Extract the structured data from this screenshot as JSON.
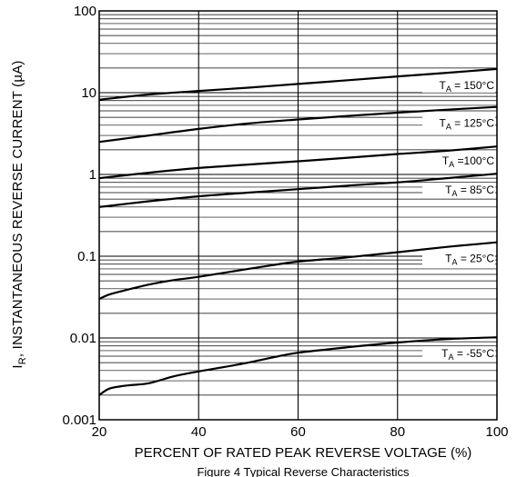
{
  "chart_data": {
    "type": "line",
    "title": "",
    "caption": "Figure 4 Typical Reverse Characteristics",
    "xlabel": "PERCENT OF RATED PEAK REVERSE VOLTAGE (%)",
    "ylabel": {
      "main": "I",
      "sub": "R",
      "rest": ", INSTANTANEOUS REVERSE CURRENT (µA)"
    },
    "xlim": [
      20,
      100
    ],
    "ylim": [
      0.001,
      100
    ],
    "yscale": "log",
    "grid": true,
    "x_ticks": [
      {
        "value": 20,
        "label": "20"
      },
      {
        "value": 40,
        "label": "40"
      },
      {
        "value": 60,
        "label": "60"
      },
      {
        "value": 80,
        "label": "80"
      },
      {
        "value": 100,
        "label": "100"
      }
    ],
    "y_ticks": [
      {
        "value": 100,
        "label": "100"
      },
      {
        "value": 10,
        "label": "10"
      },
      {
        "value": 1,
        "label": "1"
      },
      {
        "value": 0.1,
        "label": "0.1"
      },
      {
        "value": 0.01,
        "label": "0.01"
      },
      {
        "value": 0.001,
        "label": "0.001"
      }
    ],
    "series": [
      {
        "name": "150°C",
        "label_main": "T",
        "label_sub": "A",
        "label_rest": " = 150°C",
        "x": [
          20,
          30,
          40,
          50,
          60,
          70,
          80,
          90,
          100
        ],
        "y": [
          8.2,
          9.5,
          10.5,
          11.5,
          12.8,
          14.2,
          15.8,
          17.5,
          19.5
        ]
      },
      {
        "name": "125°C",
        "label_main": "T",
        "label_sub": "A",
        "label_rest": " = 125°C",
        "x": [
          20,
          30,
          40,
          50,
          60,
          70,
          80,
          90,
          100
        ],
        "y": [
          2.5,
          3.0,
          3.6,
          4.2,
          4.7,
          5.2,
          5.7,
          6.2,
          6.7
        ]
      },
      {
        "name": "100°C",
        "label_main": "T",
        "label_sub": "A",
        "label_rest": " =100°C",
        "x": [
          20,
          30,
          40,
          50,
          60,
          70,
          80,
          90,
          100
        ],
        "y": [
          0.9,
          1.05,
          1.2,
          1.32,
          1.45,
          1.6,
          1.78,
          1.95,
          2.2
        ]
      },
      {
        "name": "85°C",
        "label_main": "T",
        "label_sub": "A",
        "label_rest": " = 85°C",
        "x": [
          20,
          30,
          40,
          50,
          60,
          70,
          80,
          90,
          100
        ],
        "y": [
          0.4,
          0.47,
          0.54,
          0.6,
          0.66,
          0.73,
          0.8,
          0.9,
          1.02
        ]
      },
      {
        "name": "25°C",
        "label_main": "T",
        "label_sub": "A",
        "label_rest": " = 25°C",
        "x": [
          20,
          22,
          25,
          30,
          35,
          40,
          50,
          55,
          60,
          70,
          80,
          90,
          100
        ],
        "y": [
          0.03,
          0.034,
          0.038,
          0.045,
          0.051,
          0.056,
          0.07,
          0.078,
          0.086,
          0.097,
          0.112,
          0.13,
          0.148
        ]
      },
      {
        "name": "-55°C",
        "label_main": "T",
        "label_sub": "A",
        "label_rest": " = -55°C",
        "x": [
          20,
          22,
          25,
          30,
          35,
          40,
          45,
          50,
          55,
          60,
          70,
          80,
          90,
          100
        ],
        "y": [
          0.002,
          0.0024,
          0.0026,
          0.0028,
          0.0034,
          0.0039,
          0.0044,
          0.005,
          0.0058,
          0.0066,
          0.0077,
          0.0088,
          0.0097,
          0.0102
        ]
      }
    ]
  }
}
